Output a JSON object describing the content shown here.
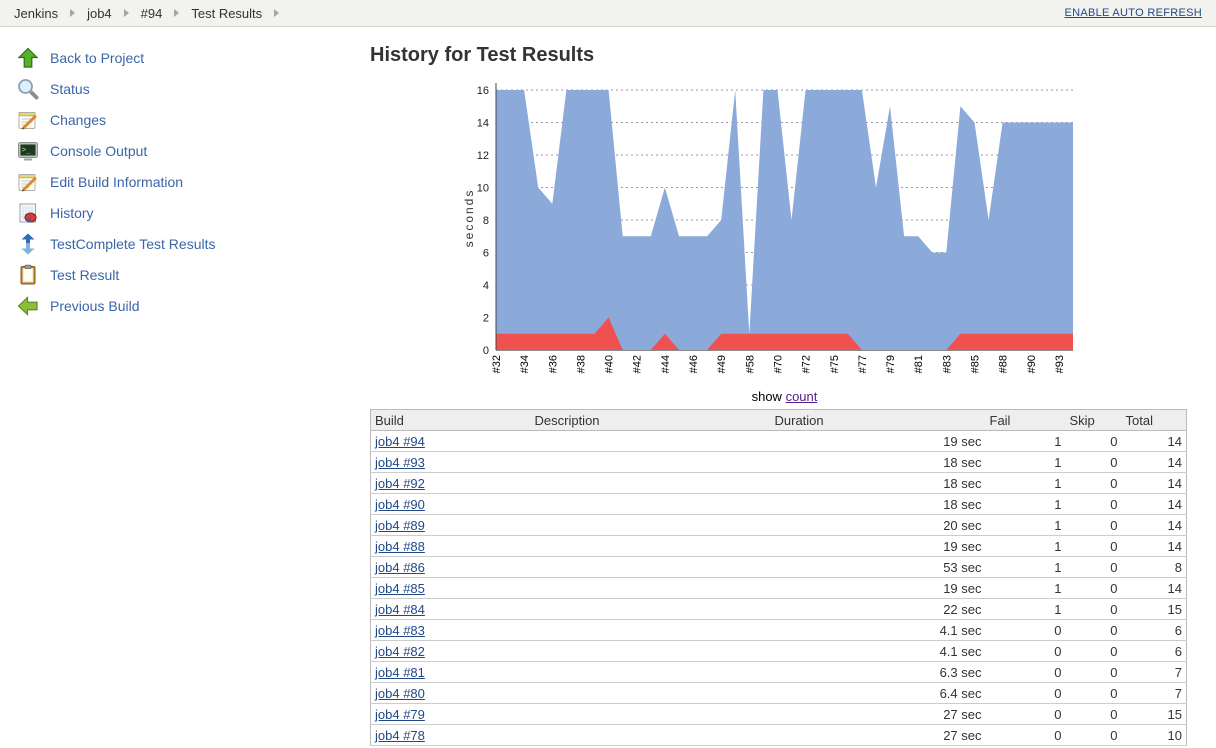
{
  "breadcrumb": {
    "items": [
      "Jenkins",
      "job4",
      "#94",
      "Test Results"
    ],
    "auto_refresh_label": "ENABLE AUTO REFRESH"
  },
  "sidebar": {
    "items": [
      {
        "icon": "up-arrow-icon",
        "label": "Back to Project"
      },
      {
        "icon": "magnifier-icon",
        "label": "Status"
      },
      {
        "icon": "notepad-icon",
        "label": "Changes"
      },
      {
        "icon": "terminal-icon",
        "label": "Console Output"
      },
      {
        "icon": "notepad-icon",
        "label": "Edit Build Information"
      },
      {
        "icon": "pie-document-icon",
        "label": "History"
      },
      {
        "icon": "testcomplete-icon",
        "label": "TestComplete Test Results"
      },
      {
        "icon": "clipboard-icon",
        "label": "Test Result"
      },
      {
        "icon": "left-arrow-icon",
        "label": "Previous Build"
      }
    ]
  },
  "main": {
    "title": "History for Test Results",
    "show_prefix": "show",
    "show_link_label": "count"
  },
  "chart_data": {
    "type": "area",
    "title": "",
    "xlabel": "",
    "ylabel": "seconds",
    "ylim": [
      0,
      16
    ],
    "y_ticks": [
      0,
      2,
      4,
      6,
      8,
      10,
      12,
      14,
      16
    ],
    "grid": true,
    "legend": "none",
    "x_tick_labels": [
      "#32",
      "#34",
      "#36",
      "#38",
      "#40",
      "#42",
      "#44",
      "#46",
      "#49",
      "#58",
      "#70",
      "#72",
      "#75",
      "#77",
      "#79",
      "#81",
      "#83",
      "#85",
      "#88",
      "#90",
      "#93"
    ],
    "tick_every": 2,
    "series": [
      {
        "name": "total tests (blue area)",
        "color": "#8caad9",
        "values": [
          16,
          16,
          16,
          10,
          9,
          16,
          16,
          16,
          16,
          7,
          7,
          7,
          10,
          7,
          7,
          7,
          8,
          16,
          1,
          16,
          16,
          8,
          16,
          16,
          16,
          16,
          16,
          10,
          15,
          7,
          7,
          6,
          6,
          15,
          14,
          8,
          14,
          14,
          14,
          14,
          14,
          14
        ]
      },
      {
        "name": "failed tests (red area)",
        "color": "#ef5050",
        "values": [
          1,
          1,
          1,
          1,
          1,
          1,
          1,
          1,
          2,
          0,
          0,
          0,
          1,
          0,
          0,
          0,
          1,
          1,
          1,
          1,
          1,
          1,
          1,
          1,
          1,
          1,
          0,
          0,
          0,
          0,
          0,
          0,
          0,
          1,
          1,
          1,
          1,
          1,
          1,
          1,
          1,
          1
        ]
      }
    ],
    "grid_color": "#999999",
    "axis_color": "#444444"
  },
  "table": {
    "headers": [
      "Build",
      "Description",
      "Duration",
      "Fail",
      "Skip",
      "Total"
    ],
    "rows": [
      {
        "build": "job4 #94",
        "description": "",
        "duration": "19 sec",
        "fail": "1",
        "skip": "0",
        "total": "14"
      },
      {
        "build": "job4 #93",
        "description": "",
        "duration": "18 sec",
        "fail": "1",
        "skip": "0",
        "total": "14"
      },
      {
        "build": "job4 #92",
        "description": "",
        "duration": "18 sec",
        "fail": "1",
        "skip": "0",
        "total": "14"
      },
      {
        "build": "job4 #90",
        "description": "",
        "duration": "18 sec",
        "fail": "1",
        "skip": "0",
        "total": "14"
      },
      {
        "build": "job4 #89",
        "description": "",
        "duration": "20 sec",
        "fail": "1",
        "skip": "0",
        "total": "14"
      },
      {
        "build": "job4 #88",
        "description": "",
        "duration": "19 sec",
        "fail": "1",
        "skip": "0",
        "total": "14"
      },
      {
        "build": "job4 #86",
        "description": "",
        "duration": "53 sec",
        "fail": "1",
        "skip": "0",
        "total": "8"
      },
      {
        "build": "job4 #85",
        "description": "",
        "duration": "19 sec",
        "fail": "1",
        "skip": "0",
        "total": "14"
      },
      {
        "build": "job4 #84",
        "description": "",
        "duration": "22 sec",
        "fail": "1",
        "skip": "0",
        "total": "15"
      },
      {
        "build": "job4 #83",
        "description": "",
        "duration": "4.1 sec",
        "fail": "0",
        "skip": "0",
        "total": "6"
      },
      {
        "build": "job4 #82",
        "description": "",
        "duration": "4.1 sec",
        "fail": "0",
        "skip": "0",
        "total": "6"
      },
      {
        "build": "job4 #81",
        "description": "",
        "duration": "6.3 sec",
        "fail": "0",
        "skip": "0",
        "total": "7"
      },
      {
        "build": "job4 #80",
        "description": "",
        "duration": "6.4 sec",
        "fail": "0",
        "skip": "0",
        "total": "7"
      },
      {
        "build": "job4 #79",
        "description": "",
        "duration": "27 sec",
        "fail": "0",
        "skip": "0",
        "total": "15"
      },
      {
        "build": "job4 #78",
        "description": "",
        "duration": "27 sec",
        "fail": "0",
        "skip": "0",
        "total": "10"
      }
    ]
  },
  "colors": {
    "sidebar_link": "#3a66a8",
    "table_link": "#204a87",
    "visited_link": "#551a8b",
    "breadcrumb_bg": "#f2f2ef",
    "table_header_bg": "#eeeeee"
  }
}
